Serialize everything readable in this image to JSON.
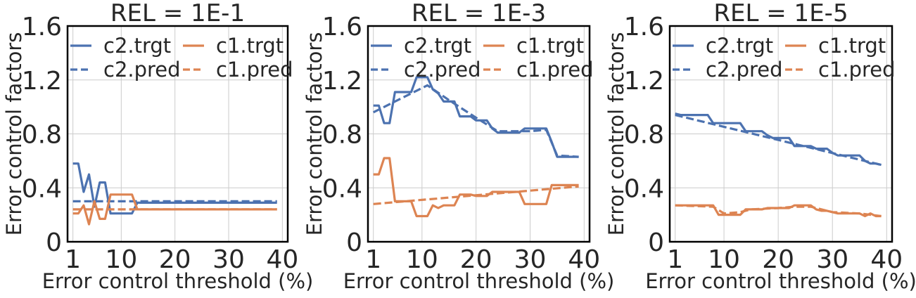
{
  "chart_data": [
    {
      "type": "line",
      "title": "REL = 1E-1",
      "xlabel": "Error control threshold (%)",
      "ylabel": "Error control factors",
      "xlim": [
        0,
        41
      ],
      "ylim": [
        0,
        1.6
      ],
      "xticks": [
        1,
        10,
        20,
        30,
        40
      ],
      "yticks": [
        0,
        0.4,
        0.8,
        1.2,
        1.6
      ],
      "ytick_labels": [
        "0",
        "0.4",
        "0.8",
        "1.2",
        "1.6"
      ],
      "grid": true,
      "legend": "top",
      "series": [
        {
          "name": "c2.trgt",
          "color": "#4c72b0",
          "dash": "solid",
          "points": [
            [
              1,
              0.58
            ],
            [
              2,
              0.58
            ],
            [
              3,
              0.37
            ],
            [
              4,
              0.5
            ],
            [
              5,
              0.26
            ],
            [
              6,
              0.44
            ],
            [
              7,
              0.44
            ],
            [
              8,
              0.21
            ],
            [
              9,
              0.21
            ],
            [
              10,
              0.21
            ],
            [
              11,
              0.21
            ],
            [
              12,
              0.21
            ],
            [
              13,
              0.29
            ],
            [
              14,
              0.29
            ],
            [
              20,
              0.29
            ],
            [
              30,
              0.29
            ],
            [
              39,
              0.29
            ]
          ]
        },
        {
          "name": "c2.pred",
          "color": "#4c72b0",
          "dash": "dashed",
          "points": [
            [
              1,
              0.3
            ],
            [
              39,
              0.3
            ]
          ]
        },
        {
          "name": "c1.trgt",
          "color": "#dd8452",
          "dash": "solid",
          "points": [
            [
              1,
              0.21
            ],
            [
              2,
              0.21
            ],
            [
              3,
              0.27
            ],
            [
              4,
              0.13
            ],
            [
              5,
              0.3
            ],
            [
              6,
              0.17
            ],
            [
              7,
              0.17
            ],
            [
              8,
              0.35
            ],
            [
              9,
              0.35
            ],
            [
              10,
              0.35
            ],
            [
              11,
              0.35
            ],
            [
              12,
              0.35
            ],
            [
              13,
              0.24
            ],
            [
              14,
              0.24
            ],
            [
              20,
              0.24
            ],
            [
              30,
              0.24
            ],
            [
              39,
              0.24
            ]
          ]
        },
        {
          "name": "c1.pred",
          "color": "#dd8452",
          "dash": "dashed",
          "points": [
            [
              1,
              0.24
            ],
            [
              39,
              0.24
            ]
          ]
        }
      ]
    },
    {
      "type": "line",
      "title": "REL = 1E-3",
      "xlabel": "Error control threshold (%)",
      "ylabel": "Error control factors",
      "xlim": [
        0,
        41
      ],
      "ylim": [
        0,
        1.6
      ],
      "xticks": [
        1,
        10,
        20,
        30,
        40
      ],
      "yticks": [
        0,
        0.4,
        0.8,
        1.2,
        1.6
      ],
      "ytick_labels": [
        "0",
        "0.4",
        "0.8",
        "1.2",
        "1.6"
      ],
      "grid": true,
      "legend": "top",
      "series": [
        {
          "name": "c2.trgt",
          "color": "#4c72b0",
          "dash": "solid",
          "points": [
            [
              1,
              1.01
            ],
            [
              2,
              1.01
            ],
            [
              3,
              0.88
            ],
            [
              4,
              0.88
            ],
            [
              5,
              1.11
            ],
            [
              6,
              1.11
            ],
            [
              7,
              1.11
            ],
            [
              8,
              1.11
            ],
            [
              9,
              1.22
            ],
            [
              10,
              1.22
            ],
            [
              11,
              1.22
            ],
            [
              12,
              1.13
            ],
            [
              13,
              1.1
            ],
            [
              14,
              1.04
            ],
            [
              15,
              1.04
            ],
            [
              16,
              1.04
            ],
            [
              17,
              0.93
            ],
            [
              18,
              0.93
            ],
            [
              19,
              0.93
            ],
            [
              20,
              0.9
            ],
            [
              21,
              0.9
            ],
            [
              22,
              0.9
            ],
            [
              23,
              0.84
            ],
            [
              24,
              0.81
            ],
            [
              25,
              0.81
            ],
            [
              26,
              0.81
            ],
            [
              27,
              0.81
            ],
            [
              28,
              0.81
            ],
            [
              29,
              0.84
            ],
            [
              30,
              0.84
            ],
            [
              31,
              0.84
            ],
            [
              32,
              0.84
            ],
            [
              33,
              0.84
            ],
            [
              34,
              0.74
            ],
            [
              35,
              0.63
            ],
            [
              36,
              0.63
            ],
            [
              37,
              0.63
            ],
            [
              38,
              0.63
            ],
            [
              39,
              0.63
            ]
          ]
        },
        {
          "name": "c2.pred",
          "color": "#4c72b0",
          "dash": "dashed",
          "points": [
            [
              1,
              0.96
            ],
            [
              11,
              1.16
            ],
            [
              15,
              1.05
            ],
            [
              20,
              0.92
            ],
            [
              24,
              0.82
            ],
            [
              30,
              0.82
            ],
            [
              33,
              0.83
            ],
            [
              35,
              0.64
            ],
            [
              39,
              0.63
            ]
          ]
        },
        {
          "name": "c1.trgt",
          "color": "#dd8452",
          "dash": "solid",
          "points": [
            [
              1,
              0.5
            ],
            [
              2,
              0.5
            ],
            [
              3,
              0.62
            ],
            [
              4,
              0.62
            ],
            [
              5,
              0.3
            ],
            [
              6,
              0.3
            ],
            [
              7,
              0.3
            ],
            [
              8,
              0.3
            ],
            [
              9,
              0.19
            ],
            [
              10,
              0.19
            ],
            [
              11,
              0.19
            ],
            [
              12,
              0.27
            ],
            [
              13,
              0.25
            ],
            [
              14,
              0.27
            ],
            [
              15,
              0.27
            ],
            [
              16,
              0.27
            ],
            [
              17,
              0.35
            ],
            [
              18,
              0.35
            ],
            [
              19,
              0.35
            ],
            [
              20,
              0.34
            ],
            [
              21,
              0.34
            ],
            [
              22,
              0.34
            ],
            [
              23,
              0.37
            ],
            [
              24,
              0.37
            ],
            [
              25,
              0.37
            ],
            [
              26,
              0.37
            ],
            [
              27,
              0.37
            ],
            [
              28,
              0.37
            ],
            [
              29,
              0.28
            ],
            [
              30,
              0.28
            ],
            [
              31,
              0.28
            ],
            [
              32,
              0.28
            ],
            [
              33,
              0.28
            ],
            [
              34,
              0.42
            ],
            [
              35,
              0.42
            ],
            [
              36,
              0.42
            ],
            [
              37,
              0.42
            ],
            [
              38,
              0.42
            ],
            [
              39,
              0.42
            ]
          ]
        },
        {
          "name": "c1.pred",
          "color": "#dd8452",
          "dash": "dashed",
          "points": [
            [
              1,
              0.28
            ],
            [
              39,
              0.41
            ]
          ]
        }
      ]
    },
    {
      "type": "line",
      "title": "REL = 1E-5",
      "xlabel": "Error control threshold (%)",
      "ylabel": "Error control factors",
      "xlim": [
        0,
        41
      ],
      "ylim": [
        0,
        1.6
      ],
      "xticks": [
        1,
        10,
        20,
        30,
        40
      ],
      "yticks": [
        0,
        0.4,
        0.8,
        1.2,
        1.6
      ],
      "ytick_labels": [
        "0",
        "0.4",
        "0.8",
        "1.2",
        "1.6"
      ],
      "grid": true,
      "legend": "top",
      "series": [
        {
          "name": "c2.trgt",
          "color": "#4c72b0",
          "dash": "solid",
          "points": [
            [
              1,
              0.95
            ],
            [
              2,
              0.94
            ],
            [
              3,
              0.94
            ],
            [
              4,
              0.94
            ],
            [
              5,
              0.94
            ],
            [
              6,
              0.94
            ],
            [
              7,
              0.94
            ],
            [
              8,
              0.88
            ],
            [
              9,
              0.88
            ],
            [
              10,
              0.88
            ],
            [
              11,
              0.88
            ],
            [
              12,
              0.88
            ],
            [
              13,
              0.88
            ],
            [
              14,
              0.82
            ],
            [
              15,
              0.82
            ],
            [
              16,
              0.82
            ],
            [
              17,
              0.82
            ],
            [
              18,
              0.79
            ],
            [
              19,
              0.77
            ],
            [
              20,
              0.77
            ],
            [
              21,
              0.77
            ],
            [
              22,
              0.77
            ],
            [
              23,
              0.71
            ],
            [
              24,
              0.71
            ],
            [
              25,
              0.71
            ],
            [
              26,
              0.71
            ],
            [
              27,
              0.69
            ],
            [
              28,
              0.69
            ],
            [
              29,
              0.69
            ],
            [
              30,
              0.66
            ],
            [
              31,
              0.64
            ],
            [
              32,
              0.64
            ],
            [
              33,
              0.64
            ],
            [
              34,
              0.64
            ],
            [
              35,
              0.64
            ],
            [
              36,
              0.6
            ],
            [
              37,
              0.58
            ],
            [
              38,
              0.58
            ],
            [
              39,
              0.57
            ]
          ]
        },
        {
          "name": "c2.pred",
          "color": "#4c72b0",
          "dash": "dashed",
          "points": [
            [
              1,
              0.94
            ],
            [
              39,
              0.57
            ]
          ]
        },
        {
          "name": "c1.trgt",
          "color": "#dd8452",
          "dash": "solid",
          "points": [
            [
              1,
              0.27
            ],
            [
              2,
              0.27
            ],
            [
              3,
              0.27
            ],
            [
              4,
              0.27
            ],
            [
              5,
              0.27
            ],
            [
              6,
              0.27
            ],
            [
              7,
              0.27
            ],
            [
              8,
              0.27
            ],
            [
              9,
              0.2
            ],
            [
              10,
              0.2
            ],
            [
              11,
              0.2
            ],
            [
              12,
              0.2
            ],
            [
              13,
              0.2
            ],
            [
              14,
              0.24
            ],
            [
              15,
              0.24
            ],
            [
              16,
              0.24
            ],
            [
              17,
              0.24
            ],
            [
              18,
              0.25
            ],
            [
              19,
              0.25
            ],
            [
              20,
              0.25
            ],
            [
              21,
              0.25
            ],
            [
              22,
              0.25
            ],
            [
              23,
              0.27
            ],
            [
              24,
              0.27
            ],
            [
              25,
              0.27
            ],
            [
              26,
              0.27
            ],
            [
              27,
              0.24
            ],
            [
              28,
              0.23
            ],
            [
              29,
              0.23
            ],
            [
              30,
              0.22
            ],
            [
              31,
              0.21
            ],
            [
              32,
              0.21
            ],
            [
              33,
              0.21
            ],
            [
              34,
              0.21
            ],
            [
              35,
              0.21
            ],
            [
              36,
              0.19
            ],
            [
              37,
              0.21
            ],
            [
              38,
              0.19
            ],
            [
              39,
              0.19
            ]
          ]
        },
        {
          "name": "c1.pred",
          "color": "#dd8452",
          "dash": "dashed",
          "points": [
            [
              1,
              0.27
            ],
            [
              8,
              0.26
            ],
            [
              10,
              0.21
            ],
            [
              13,
              0.22
            ],
            [
              15,
              0.24
            ],
            [
              20,
              0.25
            ],
            [
              23,
              0.26
            ],
            [
              26,
              0.26
            ],
            [
              30,
              0.22
            ],
            [
              35,
              0.21
            ],
            [
              39,
              0.19
            ]
          ]
        }
      ]
    }
  ]
}
